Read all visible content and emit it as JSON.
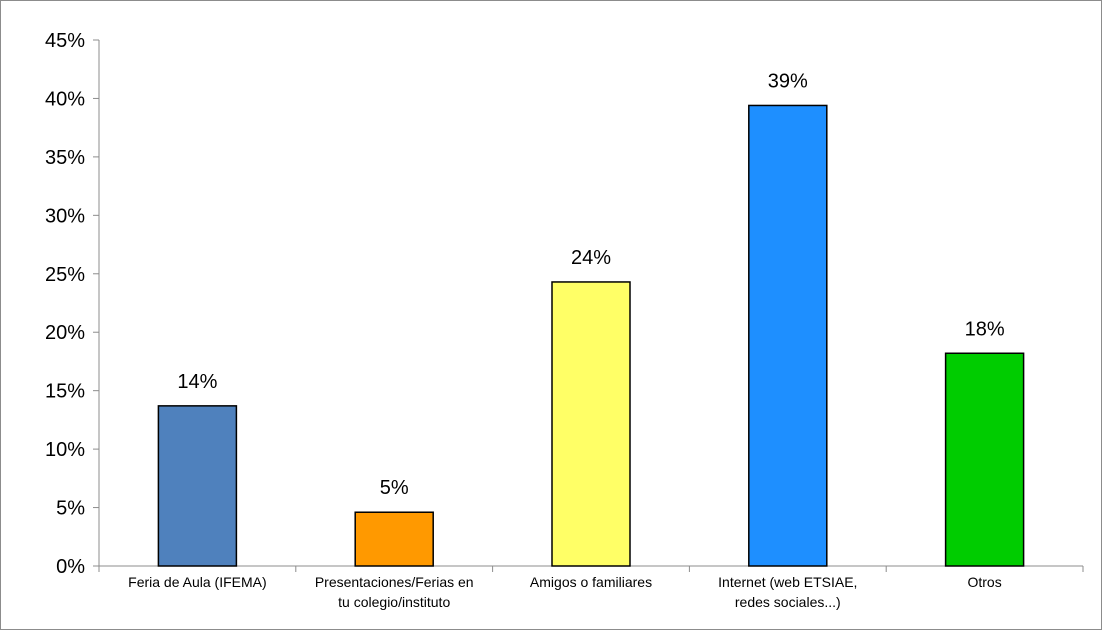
{
  "chart_data": {
    "type": "bar",
    "categories": [
      [
        "Feria de Aula (IFEMA)"
      ],
      [
        "Presentaciones/Ferias en",
        "tu colegio/instituto"
      ],
      [
        "Amigos o familiares"
      ],
      [
        "Internet (web ETSIAE,",
        "redes  sociales...)"
      ],
      [
        "Otros"
      ]
    ],
    "values": [
      0.137,
      0.046,
      0.243,
      0.394,
      0.182
    ],
    "data_labels": [
      "14%",
      "5%",
      "24%",
      "39%",
      "18%"
    ],
    "bar_colors": [
      "#4f81bd",
      "#ff9900",
      "#ffff66",
      "#1e8fff",
      "#00cc00"
    ],
    "y_ticks": [
      "0%",
      "5%",
      "10%",
      "15%",
      "20%",
      "25%",
      "30%",
      "35%",
      "40%",
      "45%"
    ],
    "ylim": [
      0,
      0.45
    ],
    "grid": false,
    "legend": "none"
  }
}
